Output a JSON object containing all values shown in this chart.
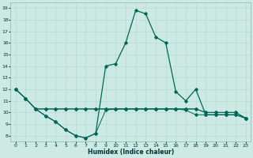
{
  "title": "",
  "xlabel": "Humidex (Indice chaleur)",
  "ylabel": "",
  "bg_color": "#cce9e4",
  "grid_color": "#b0d8d0",
  "line_color": "#006655",
  "xlim": [
    -0.5,
    23.5
  ],
  "ylim": [
    7.5,
    19.5
  ],
  "xticks": [
    0,
    1,
    2,
    3,
    4,
    5,
    6,
    7,
    8,
    9,
    10,
    11,
    12,
    13,
    14,
    15,
    16,
    17,
    18,
    19,
    20,
    21,
    22,
    23
  ],
  "yticks": [
    8,
    9,
    10,
    11,
    12,
    13,
    14,
    15,
    16,
    17,
    18,
    19
  ],
  "line1_x": [
    0,
    1,
    2,
    3,
    4,
    5,
    6,
    7,
    8,
    9,
    10,
    11,
    12,
    13,
    14,
    15,
    16,
    17,
    18,
    19,
    20,
    21,
    22,
    23
  ],
  "line1_y": [
    12.0,
    11.2,
    10.3,
    10.3,
    10.3,
    10.3,
    10.3,
    10.3,
    10.3,
    10.3,
    10.3,
    10.3,
    10.3,
    10.3,
    10.3,
    10.3,
    10.3,
    10.3,
    10.3,
    10.0,
    10.0,
    10.0,
    10.0,
    9.5
  ],
  "line2_x": [
    0,
    1,
    2,
    3,
    4,
    5,
    6,
    7,
    8,
    9,
    10,
    11,
    12,
    13,
    14,
    15,
    16,
    17,
    18,
    19,
    20,
    21,
    22,
    23
  ],
  "line2_y": [
    12.0,
    11.2,
    10.3,
    9.7,
    9.2,
    8.5,
    8.0,
    7.8,
    8.2,
    10.2,
    10.3,
    10.3,
    10.3,
    10.3,
    10.3,
    10.3,
    10.3,
    10.2,
    9.8,
    9.8,
    9.8,
    9.8,
    9.8,
    9.5
  ],
  "line3_x": [
    0,
    1,
    2,
    3,
    4,
    5,
    6,
    7,
    8,
    9,
    10,
    11,
    12,
    13,
    14,
    15,
    16,
    17,
    18,
    19,
    20,
    21,
    22,
    23
  ],
  "line3_y": [
    12.0,
    11.2,
    10.3,
    9.7,
    9.2,
    8.5,
    8.0,
    7.8,
    8.2,
    14.0,
    14.2,
    16.0,
    18.8,
    18.5,
    16.5,
    16.0,
    11.8,
    11.0,
    12.0,
    9.8,
    9.8,
    9.8,
    9.8,
    9.5
  ],
  "line4_x": [
    2,
    3,
    4,
    5,
    6,
    7,
    8,
    9,
    10,
    11,
    12,
    13,
    14,
    15,
    16,
    17,
    18,
    19,
    20,
    21,
    22,
    23
  ],
  "line4_y": [
    10.3,
    10.3,
    10.3,
    10.3,
    10.3,
    10.3,
    10.3,
    10.3,
    10.3,
    10.3,
    10.3,
    10.3,
    10.3,
    10.3,
    10.3,
    10.3,
    10.3,
    10.0,
    10.0,
    10.0,
    10.0,
    9.5
  ]
}
